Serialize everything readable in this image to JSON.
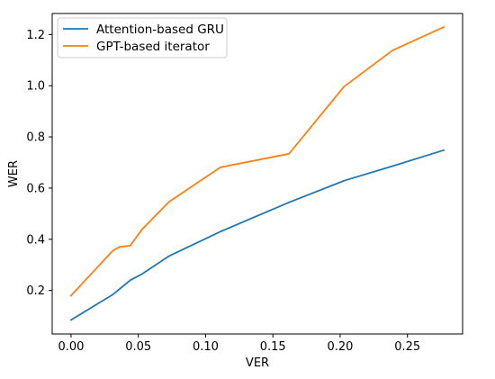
{
  "chart_data": {
    "type": "line",
    "title": "",
    "xlabel": "VER",
    "ylabel": "WER",
    "xlim": [
      -0.014,
      0.291
    ],
    "ylim": [
      0.03,
      1.282
    ],
    "xticks": [
      0.0,
      0.05,
      0.1,
      0.15,
      0.2,
      0.25
    ],
    "xtick_labels": [
      "0.00",
      "0.05",
      "0.10",
      "0.15",
      "0.20",
      "0.25"
    ],
    "yticks": [
      0.2,
      0.4,
      0.6,
      0.8,
      1.0,
      1.2
    ],
    "ytick_labels": [
      "0.2",
      "0.4",
      "0.6",
      "0.8",
      "1.0",
      "1.2"
    ],
    "grid": false,
    "legend_position": "top-left",
    "series": [
      {
        "name": "Attention-based GRU",
        "color": "#1f77b4",
        "x": [
          0.0,
          0.031,
          0.044,
          0.053,
          0.073,
          0.111,
          0.162,
          0.203,
          0.239,
          0.277
        ],
        "y": [
          0.085,
          0.184,
          0.24,
          0.265,
          0.335,
          0.43,
          0.544,
          0.629,
          0.686,
          0.748
        ]
      },
      {
        "name": "GPT-based iterator",
        "color": "#ff7f0e",
        "x": [
          0.0,
          0.031,
          0.036,
          0.044,
          0.053,
          0.073,
          0.111,
          0.162,
          0.203,
          0.239,
          0.277
        ],
        "y": [
          0.18,
          0.355,
          0.37,
          0.375,
          0.44,
          0.547,
          0.681,
          0.734,
          0.997,
          1.138,
          1.229
        ]
      }
    ]
  }
}
